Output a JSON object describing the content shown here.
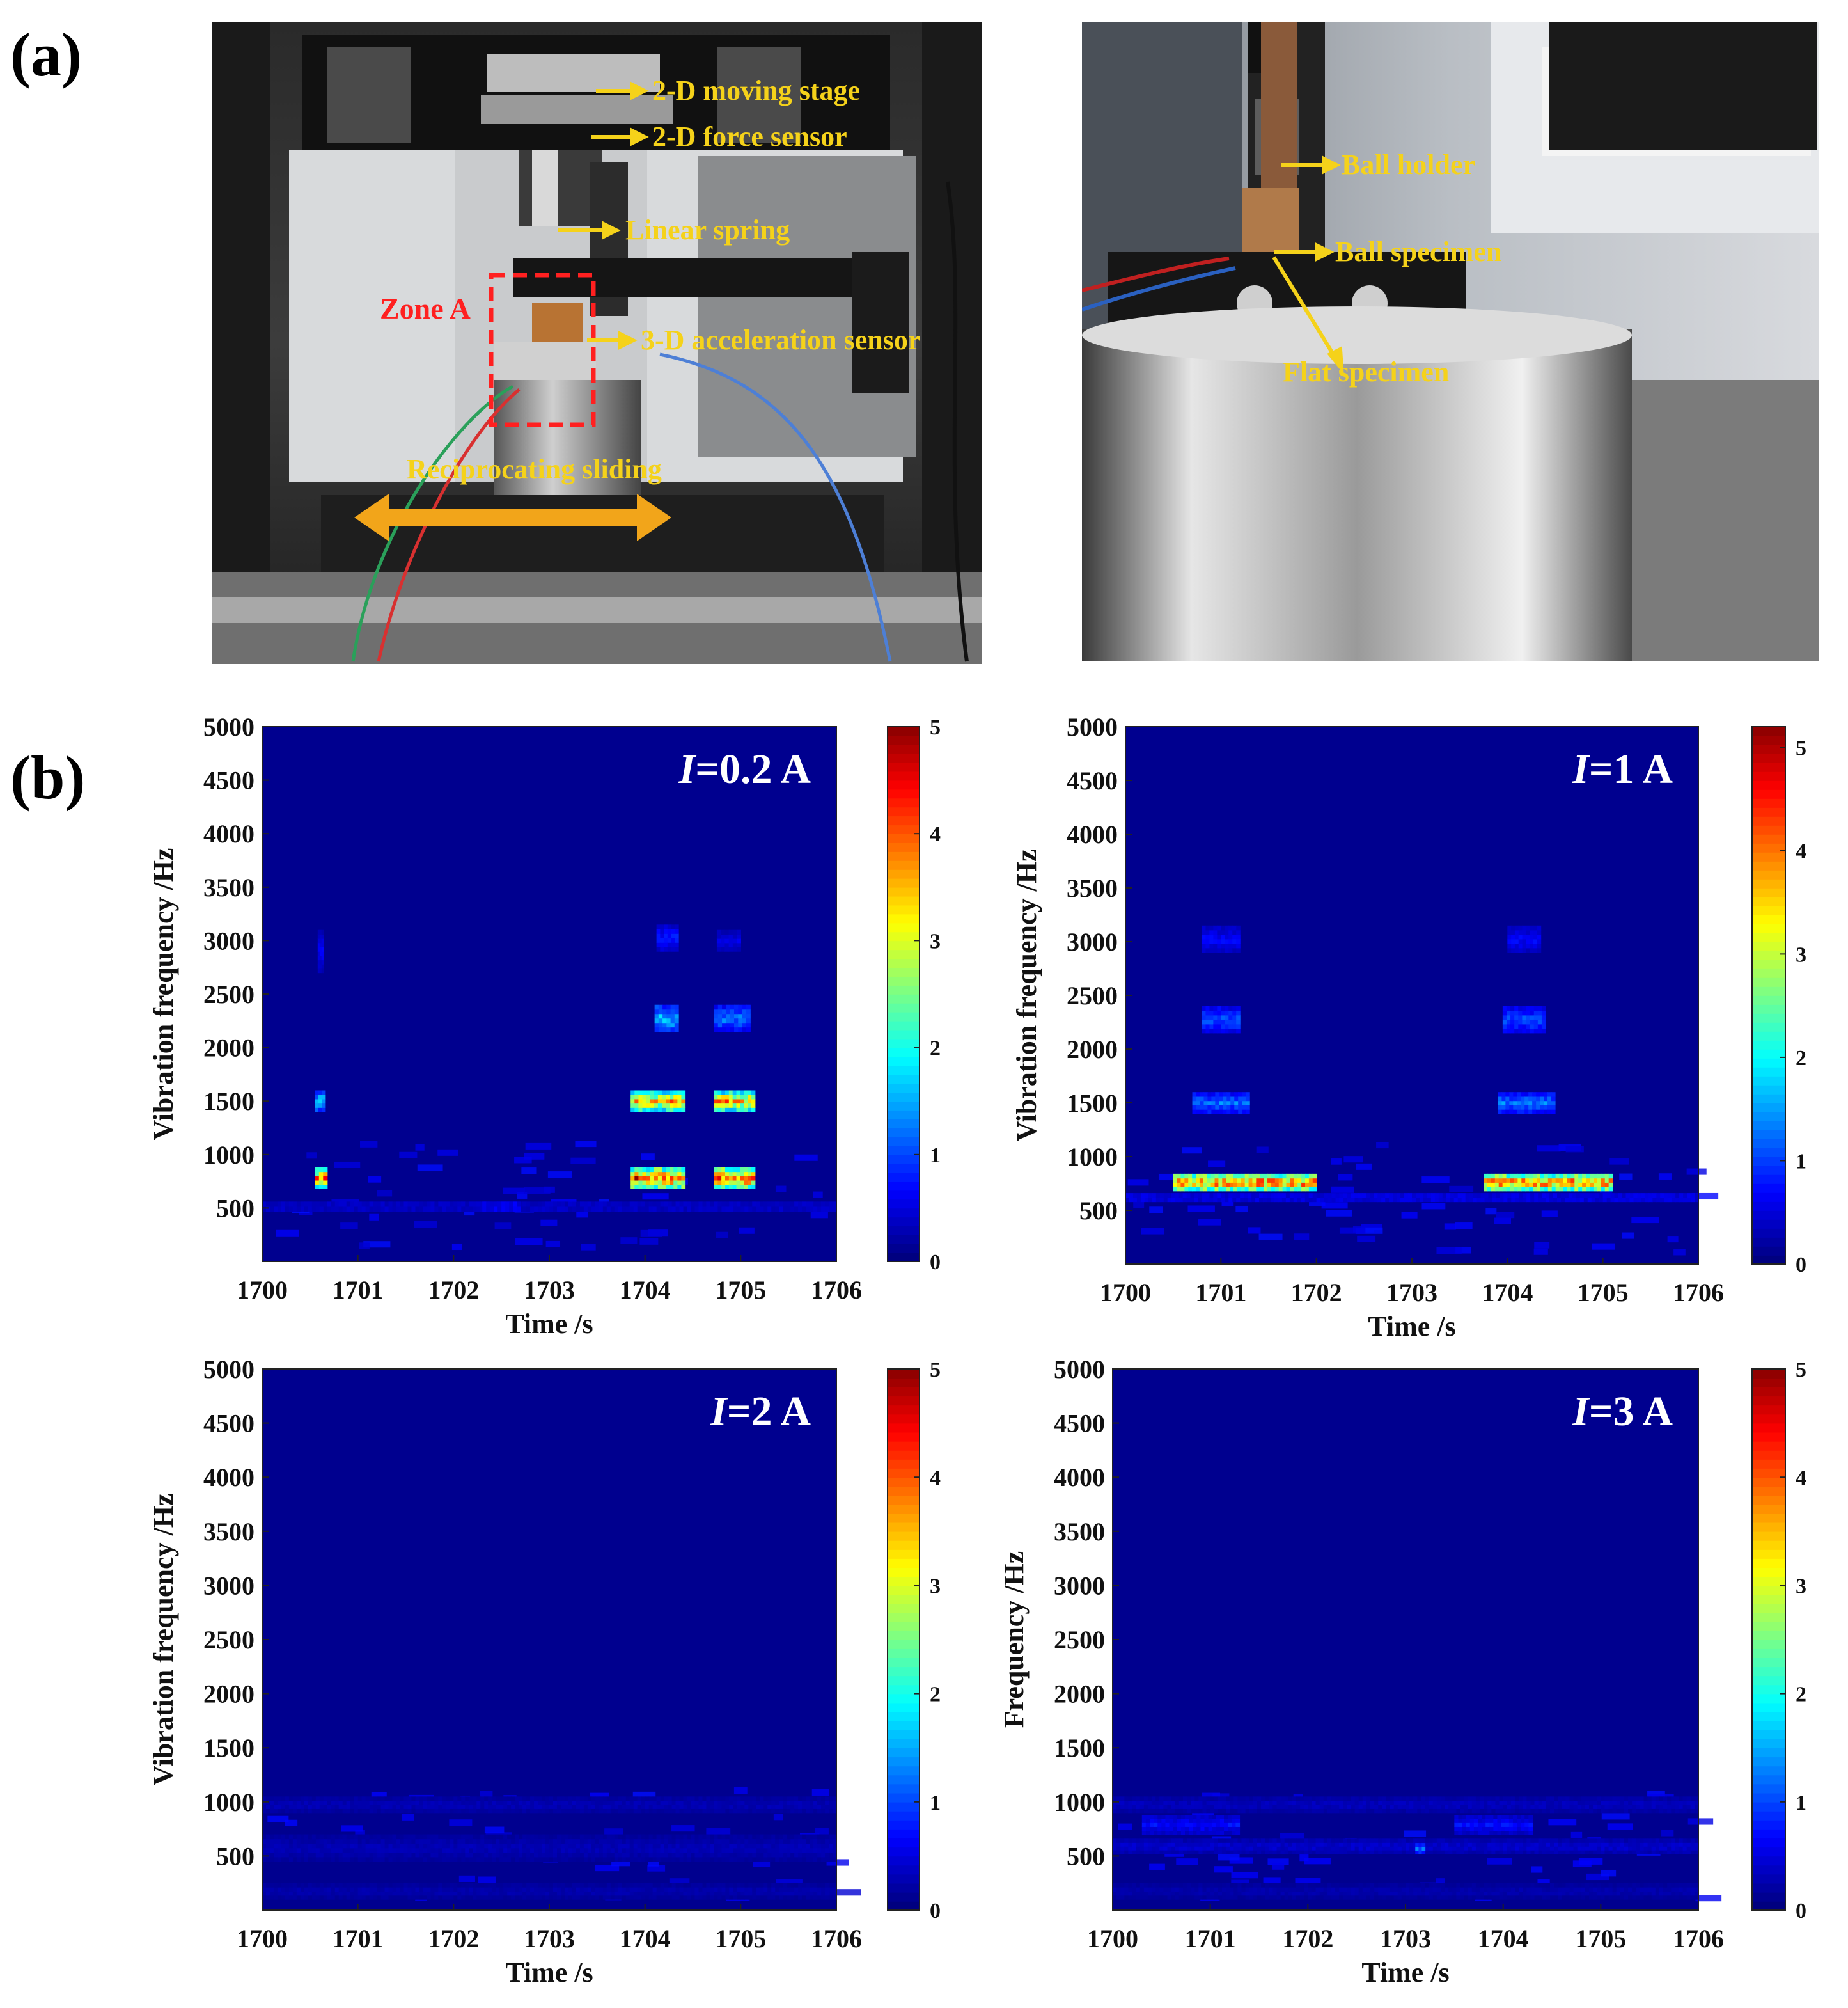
{
  "figure": {
    "panel_a_label": "(a)",
    "panel_b_label": "(b)"
  },
  "photo_left": {
    "annotations": [
      {
        "text": "2-D moving stage"
      },
      {
        "text": "2-D force sensor"
      },
      {
        "text": "Linear spring"
      },
      {
        "text": "3-D acceleration sensor"
      },
      {
        "text": "Reciprocating sliding"
      }
    ],
    "zone_label": "Zone A",
    "colors": {
      "annotation": "#f5d21a",
      "zone": "#ff2020",
      "arrow": "#f2a51a"
    }
  },
  "photo_right": {
    "annotations": [
      {
        "text": "Ball holder"
      },
      {
        "text": "Ball specimen"
      },
      {
        "text": "Flat specimen"
      }
    ]
  },
  "chart_data": [
    {
      "type": "heatmap",
      "title_italic": "I",
      "title_rest": "=0.2 A",
      "xlabel": "Time /s",
      "ylabel": "Vibration frequency /Hz",
      "xlim": [
        1700,
        1706
      ],
      "ylim": [
        0,
        5000
      ],
      "xticks": [
        1700,
        1701,
        1702,
        1703,
        1704,
        1705,
        1706
      ],
      "yticks": [
        500,
        1000,
        1500,
        2000,
        2500,
        3000,
        3500,
        4000,
        4500,
        5000
      ],
      "colorbar": {
        "range": [
          0,
          5
        ],
        "ticks": [
          0,
          1,
          2,
          3,
          4,
          5
        ]
      },
      "blobs": [
        {
          "t0": 1700.55,
          "t1": 1700.68,
          "f0": 680,
          "f1": 880,
          "v": 4.6
        },
        {
          "t0": 1700.55,
          "t1": 1700.66,
          "f0": 1400,
          "f1": 1600,
          "v": 2.0
        },
        {
          "t0": 1700.58,
          "t1": 1700.64,
          "f0": 2700,
          "f1": 3100,
          "v": 0.7
        },
        {
          "t0": 1703.85,
          "t1": 1704.42,
          "f0": 680,
          "f1": 880,
          "v": 5.0
        },
        {
          "t0": 1703.85,
          "t1": 1704.42,
          "f0": 1400,
          "f1": 1600,
          "v": 4.3
        },
        {
          "t0": 1704.1,
          "t1": 1704.35,
          "f0": 2150,
          "f1": 2400,
          "v": 2.0
        },
        {
          "t0": 1704.12,
          "t1": 1704.35,
          "f0": 2900,
          "f1": 3150,
          "v": 0.9
        },
        {
          "t0": 1704.72,
          "t1": 1705.15,
          "f0": 680,
          "f1": 880,
          "v": 5.0
        },
        {
          "t0": 1704.72,
          "t1": 1705.15,
          "f0": 1400,
          "f1": 1600,
          "v": 4.3
        },
        {
          "t0": 1704.72,
          "t1": 1705.1,
          "f0": 2150,
          "f1": 2400,
          "v": 1.5
        },
        {
          "t0": 1704.75,
          "t1": 1705.0,
          "f0": 2900,
          "f1": 3100,
          "v": 0.6
        },
        {
          "t0": 1700.0,
          "t1": 1706.0,
          "f0": 470,
          "f1": 560,
          "v": 0.55
        },
        {
          "t0": 1702.3,
          "t1": 1702.7,
          "f0": 470,
          "f1": 560,
          "v": 0.9
        }
      ]
    },
    {
      "type": "heatmap",
      "title_italic": "I",
      "title_rest": "=1 A",
      "xlabel": "Time /s",
      "ylabel": "Vibration frequency /Hz",
      "xlim": [
        1700,
        1706
      ],
      "ylim": [
        0,
        5000
      ],
      "xticks": [
        1700,
        1701,
        1702,
        1703,
        1704,
        1705,
        1706
      ],
      "yticks": [
        500,
        1000,
        1500,
        2000,
        2500,
        3000,
        3500,
        4000,
        4500,
        5000
      ],
      "colorbar": {
        "range": [
          0,
          5.2
        ],
        "ticks": [
          0,
          1,
          2,
          3,
          4,
          5
        ]
      },
      "blobs": [
        {
          "t0": 1700.5,
          "t1": 1702.0,
          "f0": 680,
          "f1": 840,
          "v": 5.0
        },
        {
          "t0": 1700.7,
          "t1": 1701.3,
          "f0": 1400,
          "f1": 1600,
          "v": 1.5
        },
        {
          "t0": 1700.8,
          "t1": 1701.2,
          "f0": 2150,
          "f1": 2400,
          "v": 1.3
        },
        {
          "t0": 1700.8,
          "t1": 1701.2,
          "f0": 2900,
          "f1": 3150,
          "v": 0.8
        },
        {
          "t0": 1703.75,
          "t1": 1705.1,
          "f0": 680,
          "f1": 840,
          "v": 5.0
        },
        {
          "t0": 1703.9,
          "t1": 1704.5,
          "f0": 1400,
          "f1": 1600,
          "v": 1.6
        },
        {
          "t0": 1703.95,
          "t1": 1704.4,
          "f0": 2150,
          "f1": 2400,
          "v": 1.3
        },
        {
          "t0": 1704.0,
          "t1": 1704.35,
          "f0": 2900,
          "f1": 3150,
          "v": 0.8
        },
        {
          "t0": 1700.0,
          "t1": 1706.0,
          "f0": 580,
          "f1": 660,
          "v": 0.8
        }
      ]
    },
    {
      "type": "heatmap",
      "title_italic": "I",
      "title_rest": "=2 A",
      "xlabel": "Time /s",
      "ylabel": "Vibration frequency /Hz",
      "xlim": [
        1700,
        1706
      ],
      "ylim": [
        0,
        5000
      ],
      "xticks": [
        1700,
        1701,
        1702,
        1703,
        1704,
        1705,
        1706
      ],
      "yticks": [
        500,
        1000,
        1500,
        2000,
        2500,
        3000,
        3500,
        4000,
        4500,
        5000
      ],
      "colorbar": {
        "range": [
          0,
          5
        ],
        "ticks": [
          0,
          1,
          2,
          3,
          4,
          5
        ]
      },
      "blobs": [
        {
          "t0": 1700.0,
          "t1": 1706.0,
          "f0": 900,
          "f1": 1050,
          "v": 0.35
        },
        {
          "t0": 1700.0,
          "t1": 1706.0,
          "f0": 450,
          "f1": 700,
          "v": 0.35
        },
        {
          "t0": 1700.0,
          "t1": 1706.0,
          "f0": 100,
          "f1": 250,
          "v": 0.3
        }
      ]
    },
    {
      "type": "heatmap",
      "title_italic": "I",
      "title_rest": "=3 A",
      "xlabel": "Time /s",
      "ylabel": "Frequency /Hz",
      "xlim": [
        1700,
        1706
      ],
      "ylim": [
        0,
        5000
      ],
      "xticks": [
        1700,
        1701,
        1702,
        1703,
        1704,
        1705,
        1706
      ],
      "yticks": [
        500,
        1000,
        1500,
        2000,
        2500,
        3000,
        3500,
        4000,
        4500,
        5000
      ],
      "colorbar": {
        "range": [
          0,
          5
        ],
        "ticks": [
          0,
          1,
          2,
          3,
          4,
          5
        ]
      },
      "blobs": [
        {
          "t0": 1700.0,
          "t1": 1706.0,
          "f0": 900,
          "f1": 1050,
          "v": 0.4
        },
        {
          "t0": 1700.3,
          "t1": 1701.3,
          "f0": 700,
          "f1": 880,
          "v": 0.8
        },
        {
          "t0": 1703.5,
          "t1": 1704.3,
          "f0": 700,
          "f1": 880,
          "v": 0.8
        },
        {
          "t0": 1700.0,
          "t1": 1706.0,
          "f0": 520,
          "f1": 660,
          "v": 0.5
        },
        {
          "t0": 1703.1,
          "t1": 1703.2,
          "f0": 520,
          "f1": 620,
          "v": 1.4
        },
        {
          "t0": 1700.0,
          "t1": 1706.0,
          "f0": 100,
          "f1": 250,
          "v": 0.3
        }
      ]
    }
  ]
}
